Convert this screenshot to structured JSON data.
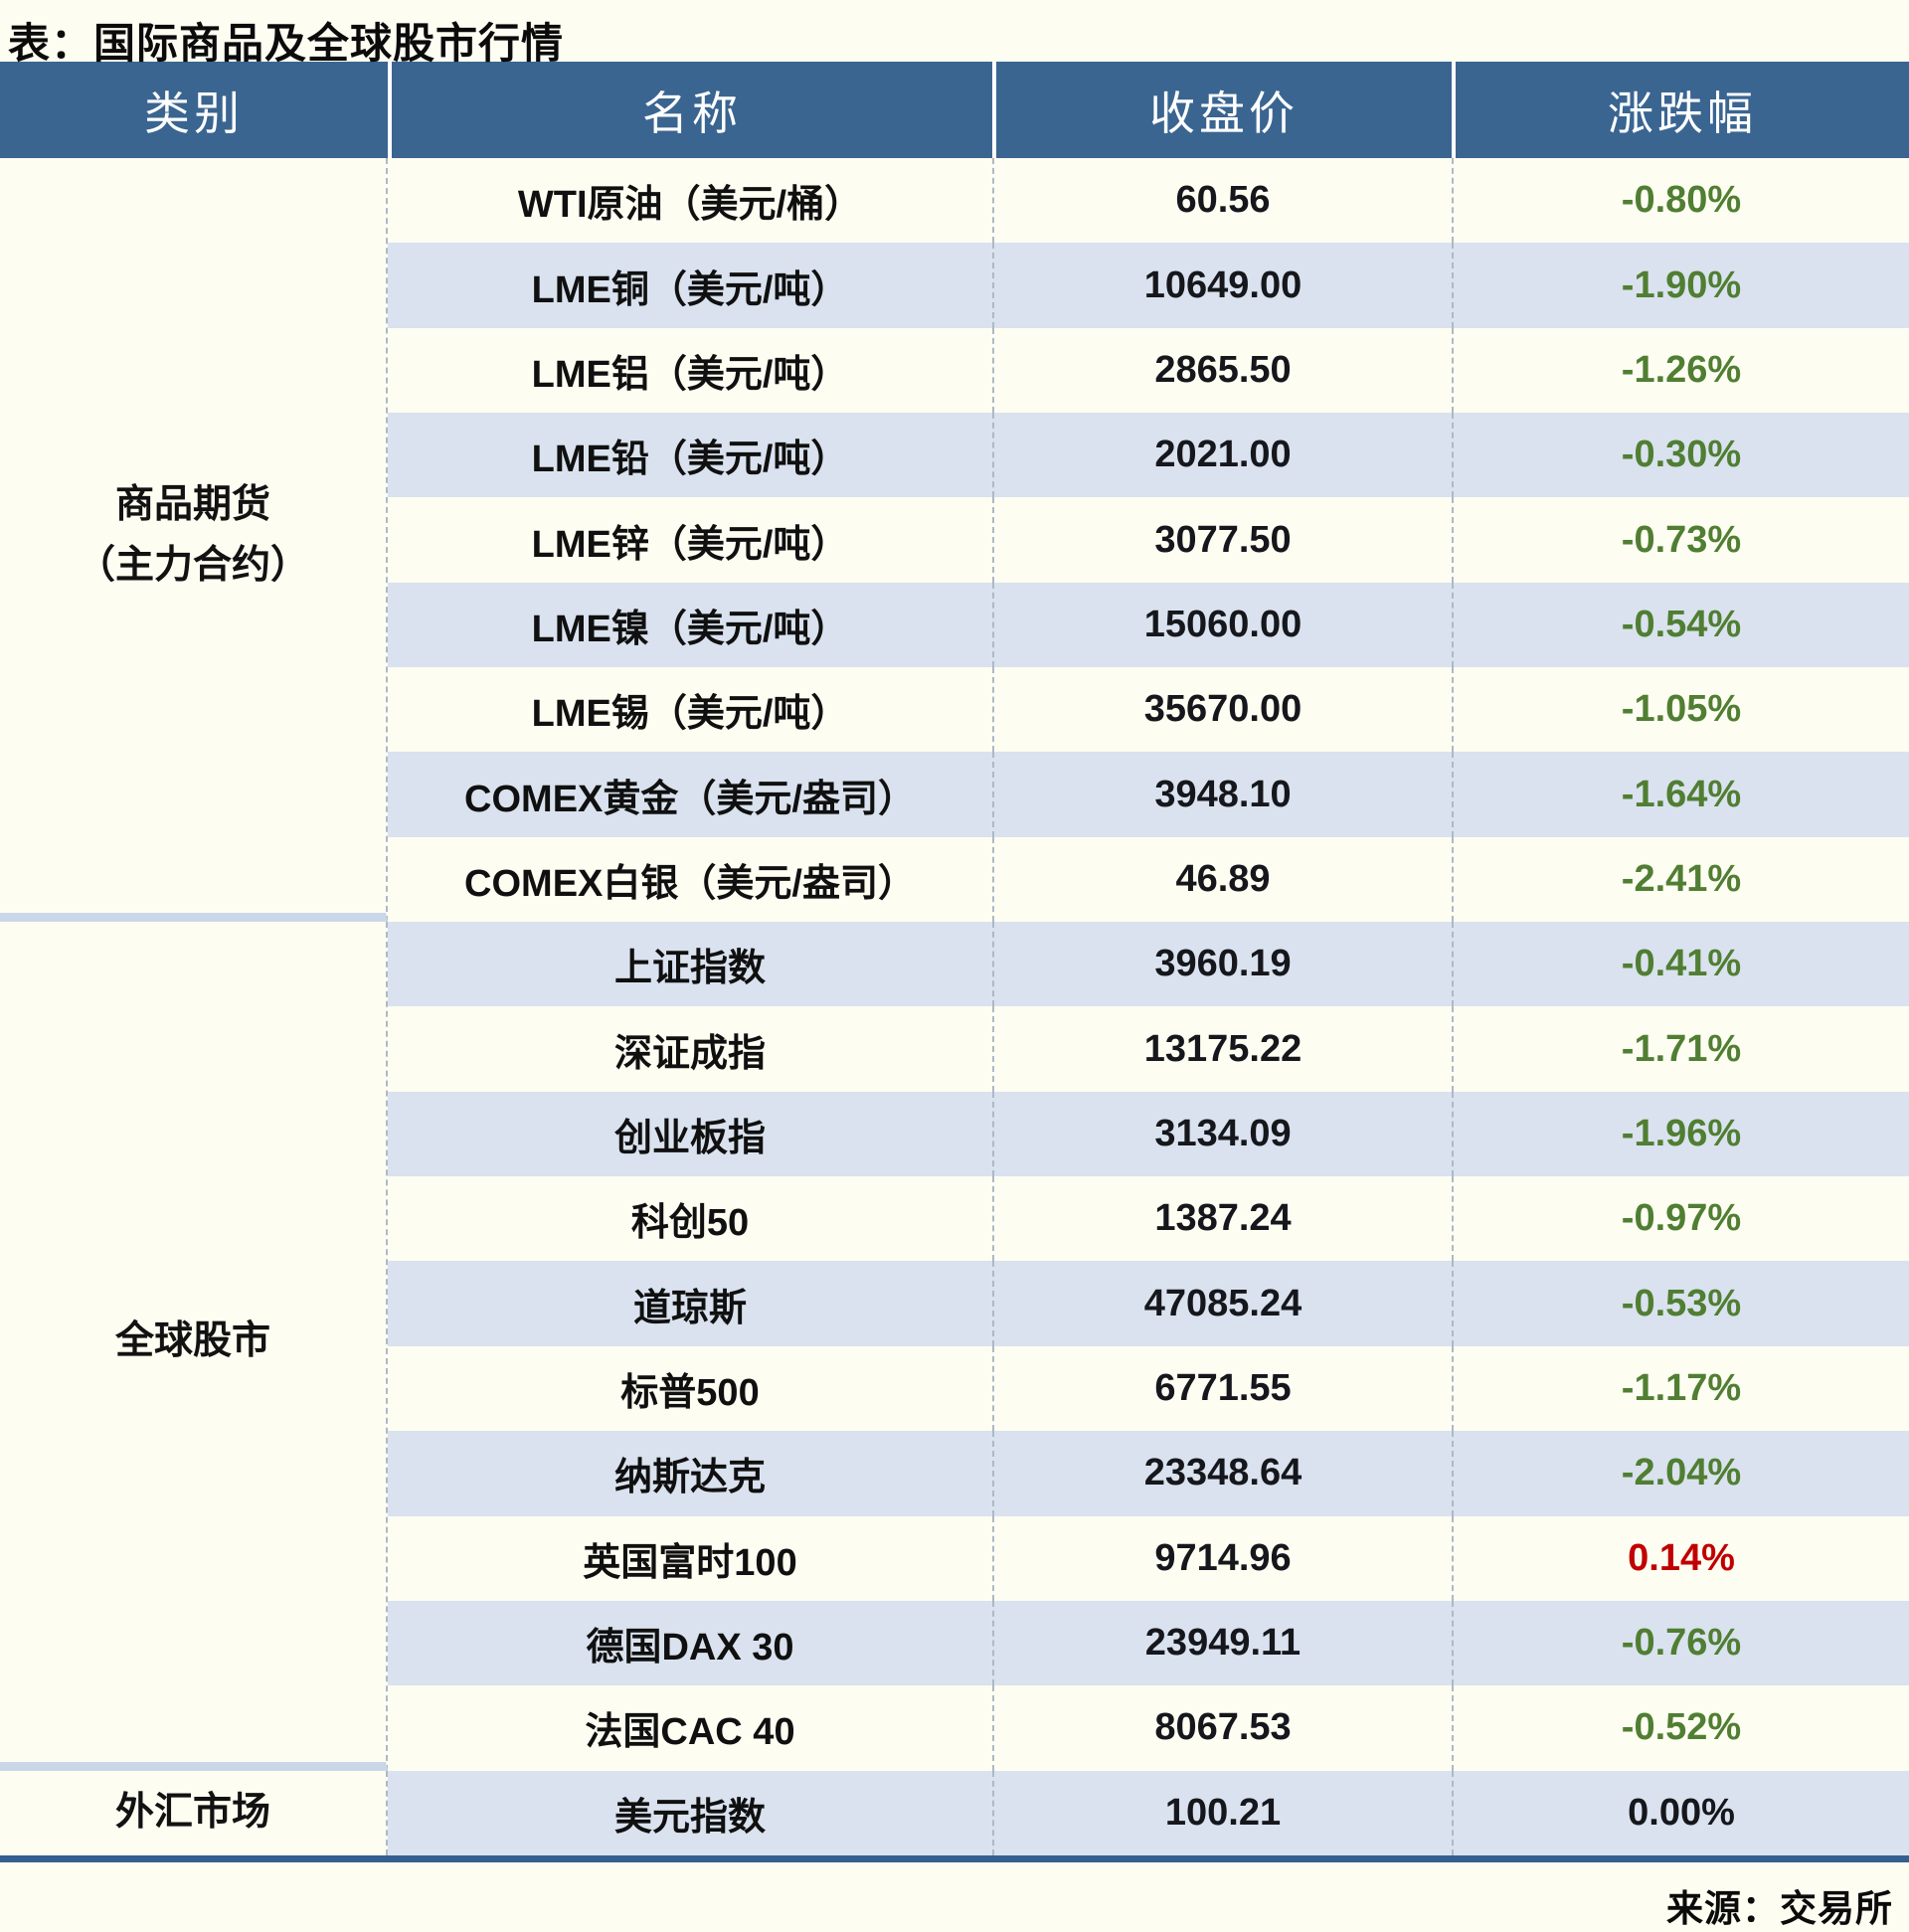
{
  "title": "表：国际商品及全球股市行情",
  "source": "来源：交易所",
  "columns": [
    "类别",
    "名称",
    "收盘价",
    "涨跌幅"
  ],
  "categories": [
    {
      "id": "commodity-futures",
      "lines": [
        "商品期货",
        "（主力合约）"
      ],
      "row_span": 9
    },
    {
      "id": "global-stocks",
      "lines": [
        "全球股市"
      ],
      "row_span": 10
    },
    {
      "id": "fx-market",
      "lines": [
        "外汇市场"
      ],
      "row_span": 1
    }
  ],
  "colors": {
    "header_bg": "#3A6591",
    "row_alt_bg": "#D9E2EE",
    "page_bg": "#FDFDF2",
    "bottom_bar": "#336090",
    "down_green": "#507E32",
    "up_red": "#C00000",
    "flat_black": "#16171C"
  },
  "chart_data": {
    "type": "table",
    "title": "表：国际商品及全球股市行情",
    "columns": [
      "类别",
      "名称",
      "收盘价",
      "涨跌幅"
    ],
    "source": "来源：交易所",
    "rows": [
      {
        "category": "商品期货（主力合约）",
        "name": "WTI原油（美元/桶）",
        "close": "60.56",
        "change": "-0.80%",
        "direction": "down"
      },
      {
        "category": "商品期货（主力合约）",
        "name": "LME铜（美元/吨）",
        "close": "10649.00",
        "change": "-1.90%",
        "direction": "down"
      },
      {
        "category": "商品期货（主力合约）",
        "name": "LME铝（美元/吨）",
        "close": "2865.50",
        "change": "-1.26%",
        "direction": "down"
      },
      {
        "category": "商品期货（主力合约）",
        "name": "LME铅（美元/吨）",
        "close": "2021.00",
        "change": "-0.30%",
        "direction": "down"
      },
      {
        "category": "商品期货（主力合约）",
        "name": "LME锌（美元/吨）",
        "close": "3077.50",
        "change": "-0.73%",
        "direction": "down"
      },
      {
        "category": "商品期货（主力合约）",
        "name": "LME镍（美元/吨）",
        "close": "15060.00",
        "change": "-0.54%",
        "direction": "down"
      },
      {
        "category": "商品期货（主力合约）",
        "name": "LME锡（美元/吨）",
        "close": "35670.00",
        "change": "-1.05%",
        "direction": "down"
      },
      {
        "category": "商品期货（主力合约）",
        "name": "COMEX黄金（美元/盎司）",
        "close": "3948.10",
        "change": "-1.64%",
        "direction": "down"
      },
      {
        "category": "商品期货（主力合约）",
        "name": "COMEX白银（美元/盎司）",
        "close": "46.89",
        "change": "-2.41%",
        "direction": "down"
      },
      {
        "category": "全球股市",
        "name": "上证指数",
        "close": "3960.19",
        "change": "-0.41%",
        "direction": "down"
      },
      {
        "category": "全球股市",
        "name": "深证成指",
        "close": "13175.22",
        "change": "-1.71%",
        "direction": "down"
      },
      {
        "category": "全球股市",
        "name": "创业板指",
        "close": "3134.09",
        "change": "-1.96%",
        "direction": "down"
      },
      {
        "category": "全球股市",
        "name": "科创50",
        "close": "1387.24",
        "change": "-0.97%",
        "direction": "down"
      },
      {
        "category": "全球股市",
        "name": "道琼斯",
        "close": "47085.24",
        "change": "-0.53%",
        "direction": "down"
      },
      {
        "category": "全球股市",
        "name": "标普500",
        "close": "6771.55",
        "change": "-1.17%",
        "direction": "down"
      },
      {
        "category": "全球股市",
        "name": "纳斯达克",
        "close": "23348.64",
        "change": "-2.04%",
        "direction": "down"
      },
      {
        "category": "全球股市",
        "name": "英国富时100",
        "close": "9714.96",
        "change": "0.14%",
        "direction": "up"
      },
      {
        "category": "全球股市",
        "name": "德国DAX 30",
        "close": "23949.11",
        "change": "-0.76%",
        "direction": "down"
      },
      {
        "category": "全球股市",
        "name": "法国CAC 40",
        "close": "8067.53",
        "change": "-0.52%",
        "direction": "down"
      },
      {
        "category": "外汇市场",
        "name": "美元指数",
        "close": "100.21",
        "change": "0.00%",
        "direction": "flat"
      }
    ]
  }
}
